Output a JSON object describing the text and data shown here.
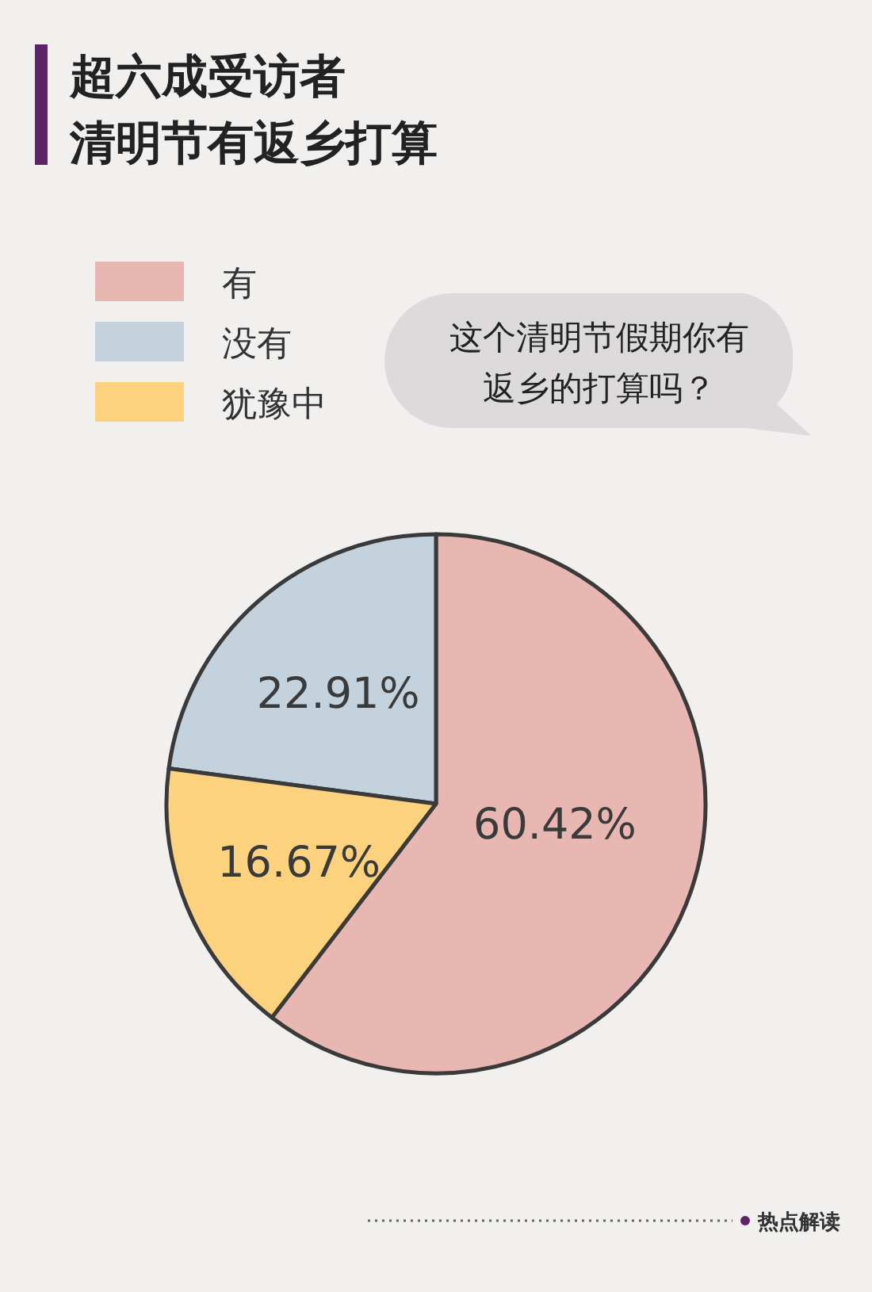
{
  "chart_data": {
    "type": "pie",
    "title": "超六成受访者",
    "subtitle": "清明节有返乡打算",
    "categories": [
      "有",
      "没有",
      "犹豫中"
    ],
    "values": [
      60.42,
      22.91,
      16.67
    ],
    "colors": [
      "#e8b7b2",
      "#c3d2dd",
      "#fdd27e"
    ],
    "value_labels": [
      "60.42%",
      "22.91%",
      "16.67%"
    ],
    "legend": "top left",
    "annotations": [
      "这个清明节假期你有返乡的打算吗？",
      "热点解读"
    ]
  }
}
